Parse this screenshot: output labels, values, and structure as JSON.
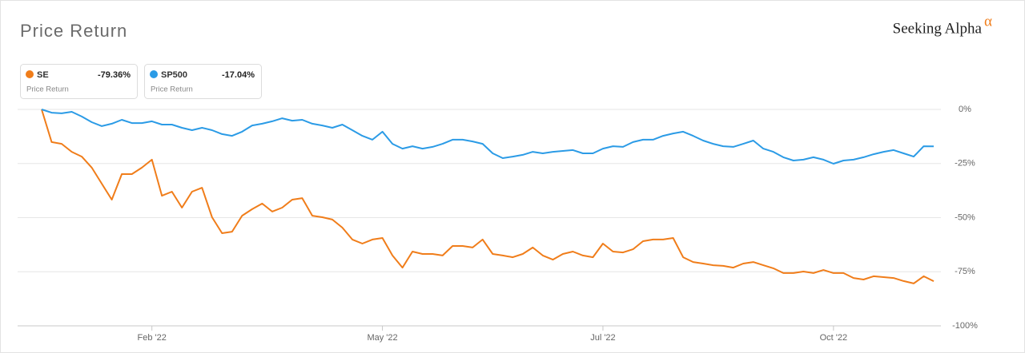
{
  "header": {
    "brand": "Seeking Alpha",
    "brand_mark": "α"
  },
  "chart_data": {
    "type": "line",
    "title": "Price Return",
    "categories": [
      null,
      null,
      null,
      null,
      null,
      null,
      null,
      null,
      null,
      null,
      null,
      "Feb '22",
      null,
      null,
      null,
      null,
      null,
      null,
      null,
      null,
      null,
      null,
      null,
      null,
      null,
      null,
      null,
      null,
      null,
      null,
      null,
      null,
      null,
      null,
      "May '22",
      null,
      null,
      null,
      null,
      null,
      null,
      null,
      null,
      null,
      null,
      null,
      null,
      null,
      null,
      null,
      null,
      null,
      null,
      null,
      null,
      null,
      "Jul '22",
      null,
      null,
      null,
      null,
      null,
      null,
      null,
      null,
      null,
      null,
      null,
      null,
      null,
      null,
      null,
      null,
      null,
      null,
      null,
      null,
      null,
      null,
      "Oct '22",
      null,
      null,
      null,
      null,
      null,
      null,
      null,
      null,
      null,
      null
    ],
    "series": [
      {
        "name": "SE",
        "color": "#f07d1a",
        "return_label": "-79.36%",
        "caption": "Price Return",
        "values": [
          0,
          -15.1,
          -15.9,
          -19.6,
          -21.8,
          -26.9,
          -34.3,
          -41.7,
          -29.9,
          -29.9,
          -26.9,
          -23.2,
          -39.9,
          -38.0,
          -45.4,
          -38.0,
          -36.2,
          -49.8,
          -57.2,
          -56.5,
          -49.1,
          -46.1,
          -43.5,
          -47.2,
          -45.4,
          -41.7,
          -41.0,
          -49.1,
          -49.8,
          -50.9,
          -54.6,
          -60.1,
          -62.0,
          -60.1,
          -59.4,
          -67.5,
          -73.1,
          -65.7,
          -66.8,
          -66.8,
          -67.5,
          -63.1,
          -63.1,
          -63.8,
          -60.1,
          -66.8,
          -67.5,
          -68.3,
          -66.8,
          -63.8,
          -67.5,
          -69.4,
          -66.8,
          -65.7,
          -67.5,
          -68.3,
          -62.0,
          -65.7,
          -66.1,
          -64.6,
          -60.9,
          -60.1,
          -60.1,
          -59.4,
          -68.3,
          -70.5,
          -71.2,
          -72.0,
          -72.3,
          -73.1,
          -71.2,
          -70.5,
          -72.0,
          -73.4,
          -75.6,
          -75.6,
          -74.9,
          -75.6,
          -74.2,
          -75.6,
          -75.6,
          -77.9,
          -78.6,
          -77.1,
          -77.5,
          -77.9,
          -79.3,
          -80.4,
          -77.1,
          -79.36
        ]
      },
      {
        "name": "SP500",
        "color": "#2b9be6",
        "return_label": "-17.04%",
        "caption": "Price Return",
        "values": [
          0,
          -1.5,
          -1.8,
          -1.1,
          -3.3,
          -5.9,
          -7.7,
          -6.6,
          -4.8,
          -6.3,
          -6.3,
          -5.5,
          -7.0,
          -7.0,
          -8.5,
          -9.6,
          -8.5,
          -9.6,
          -11.4,
          -12.2,
          -10.3,
          -7.4,
          -6.6,
          -5.5,
          -4.1,
          -5.2,
          -4.8,
          -6.6,
          -7.4,
          -8.5,
          -7.0,
          -9.6,
          -12.2,
          -14.0,
          -10.3,
          -15.9,
          -18.1,
          -17.0,
          -18.1,
          -17.3,
          -15.9,
          -14.0,
          -14.0,
          -14.8,
          -15.9,
          -20.3,
          -22.5,
          -21.8,
          -21.0,
          -19.6,
          -20.3,
          -19.6,
          -19.2,
          -18.8,
          -20.3,
          -20.3,
          -18.1,
          -17.0,
          -17.3,
          -15.1,
          -14.0,
          -14.0,
          -12.2,
          -11.1,
          -10.3,
          -12.2,
          -14.4,
          -15.9,
          -17.0,
          -17.3,
          -15.9,
          -14.4,
          -18.1,
          -19.6,
          -22.1,
          -23.6,
          -23.2,
          -22.1,
          -23.2,
          -25.1,
          -23.6,
          -23.2,
          -22.1,
          -20.7,
          -19.6,
          -18.8,
          -20.3,
          -21.8,
          -17.0,
          -17.04
        ]
      }
    ],
    "ylim": [
      -100,
      0
    ],
    "yticks": [
      {
        "value": 0,
        "label": "0%"
      },
      {
        "value": -25,
        "label": "-25%"
      },
      {
        "value": -50,
        "label": "-50%"
      },
      {
        "value": -75,
        "label": "-75%"
      },
      {
        "value": -100,
        "label": "-100%"
      }
    ],
    "grid": true
  }
}
